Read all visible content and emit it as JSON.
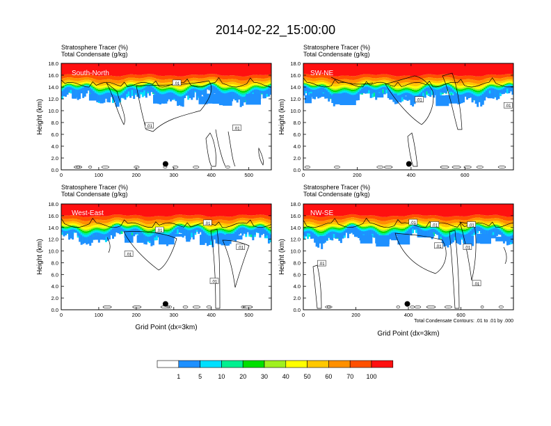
{
  "title": "2014-02-22_15:00:00",
  "panel_titles": {
    "line1": "Stratosphere Tracer   (%)",
    "line2": "Total Condensate   (g/kg)"
  },
  "contour_note": "Total Condensate Contours: .01 to .01 by .000",
  "colors": {
    "palette": [
      "#ffffff",
      "#1e90ff",
      "#00e0ff",
      "#00f090",
      "#00e000",
      "#a0f020",
      "#ffff00",
      "#ffc800",
      "#ff9000",
      "#ff5000",
      "#ff1010"
    ],
    "contour": "#000000"
  },
  "colorbar": {
    "labels": [
      "1",
      "5",
      "10",
      "20",
      "30",
      "40",
      "50",
      "60",
      "70",
      "100"
    ]
  },
  "chart_data": [
    {
      "type": "heatmap",
      "name": "South-North",
      "ylabel": "Height (km)",
      "xlabel": "",
      "ylim": [
        0,
        18
      ],
      "xlim": [
        0,
        560
      ],
      "yticks": [
        "0.0",
        "2.0",
        "4.0",
        "6.0",
        "8.0",
        "10.0",
        "12.0",
        "14.0",
        "16.0",
        "18.0"
      ],
      "yvalues": [
        0,
        2,
        4,
        6,
        8,
        10,
        12,
        14,
        16,
        18
      ],
      "xticks": [
        "0",
        "100",
        "200",
        "300",
        "400",
        "500"
      ],
      "xvalues": [
        0,
        100,
        200,
        300,
        400,
        500
      ],
      "contour_labels": [
        {
          "text": ".01",
          "x": 308,
          "y": 14.6
        },
        {
          "text": ".01",
          "x": 235,
          "y": 7.4
        },
        {
          "text": ".01",
          "x": 468,
          "y": 7.0
        }
      ],
      "marker": {
        "x": 278,
        "y": 1.0
      }
    },
    {
      "type": "heatmap",
      "name": "SW-NE",
      "ylabel": "Height (km)",
      "xlabel": "",
      "ylim": [
        0,
        18
      ],
      "xlim": [
        0,
        780
      ],
      "yticks": [
        "0.0",
        "2.0",
        "4.0",
        "6.0",
        "8.0",
        "10.0",
        "12.0",
        "14.0",
        "16.0",
        "18.0"
      ],
      "yvalues": [
        0,
        2,
        4,
        6,
        8,
        10,
        12,
        14,
        16,
        18
      ],
      "xticks": [
        "0",
        "200",
        "400",
        "600"
      ],
      "xvalues": [
        0,
        200,
        400,
        600
      ],
      "contour_labels": [
        {
          "text": ".01",
          "x": 430,
          "y": 11.8
        },
        {
          "text": ".01",
          "x": 760,
          "y": 10.8
        }
      ],
      "marker": {
        "x": 392,
        "y": 1.0
      }
    },
    {
      "type": "heatmap",
      "name": "West-East",
      "ylabel": "Height (km)",
      "xlabel": "Grid Point (dx=3km)",
      "ylim": [
        0,
        18
      ],
      "xlim": [
        0,
        560
      ],
      "yticks": [
        "0.0",
        "2.0",
        "4.0",
        "6.0",
        "8.0",
        "10.0",
        "12.0",
        "14.0",
        "16.0",
        "18.0"
      ],
      "yvalues": [
        0,
        2,
        4,
        6,
        8,
        10,
        12,
        14,
        16,
        18
      ],
      "xticks": [
        "0",
        "100",
        "200",
        "300",
        "400",
        "500"
      ],
      "xvalues": [
        0,
        100,
        200,
        300,
        400,
        500
      ],
      "contour_labels": [
        {
          "text": ".01",
          "x": 262,
          "y": 13.5
        },
        {
          "text": ".01",
          "x": 390,
          "y": 14.7
        },
        {
          "text": ".01",
          "x": 180,
          "y": 9.4
        },
        {
          "text": ".01",
          "x": 478,
          "y": 10.6
        },
        {
          "text": ".01",
          "x": 408,
          "y": 4.8
        }
      ],
      "marker": {
        "x": 278,
        "y": 1.0
      }
    },
    {
      "type": "heatmap",
      "name": "NW-SE",
      "ylabel": "Height (km)",
      "xlabel": "Grid Point (dx=3km)",
      "ylim": [
        0,
        18
      ],
      "xlim": [
        0,
        800
      ],
      "yticks": [
        "0.0",
        "2.0",
        "4.0",
        "6.0",
        "8.0",
        "10.0",
        "12.0",
        "14.0",
        "16.0",
        "18.0"
      ],
      "yvalues": [
        0,
        2,
        4,
        6,
        8,
        10,
        12,
        14,
        16,
        18
      ],
      "xticks": [
        "0",
        "200",
        "400",
        "600"
      ],
      "xvalues": [
        0,
        200,
        400,
        600
      ],
      "contour_labels": [
        {
          "text": ".01",
          "x": 418,
          "y": 14.8
        },
        {
          "text": ".01",
          "x": 500,
          "y": 14.4
        },
        {
          "text": ".01",
          "x": 640,
          "y": 14.4
        },
        {
          "text": ".01",
          "x": 515,
          "y": 10.8
        },
        {
          "text": ".01",
          "x": 625,
          "y": 10.6
        },
        {
          "text": ".01",
          "x": 70,
          "y": 7.8
        },
        {
          "text": ".01",
          "x": 660,
          "y": 4.4
        }
      ],
      "marker": {
        "x": 396,
        "y": 1.0
      }
    }
  ]
}
